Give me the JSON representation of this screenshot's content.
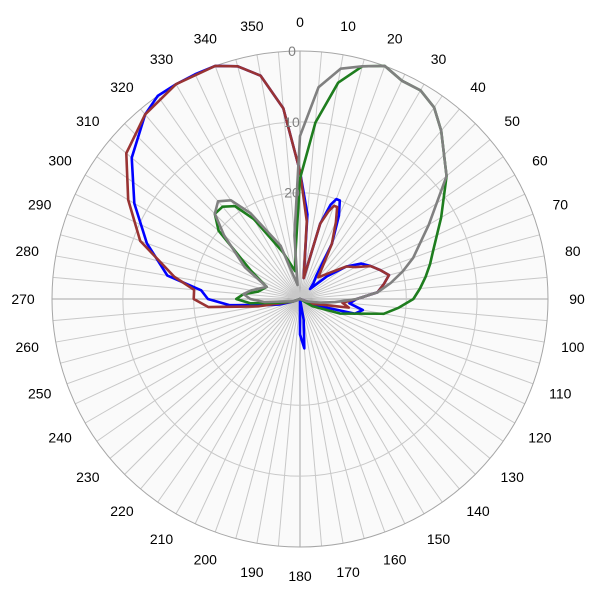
{
  "chart_data": {
    "type": "polar",
    "title": "",
    "angle_unit": "degrees",
    "angle_zero": "top",
    "angle_direction": "clockwise",
    "angle_ticks": [
      {
        "value": 0,
        "label": "0"
      },
      {
        "value": 10,
        "label": "10"
      },
      {
        "value": 20,
        "label": "20"
      },
      {
        "value": 30,
        "label": "30"
      },
      {
        "value": 40,
        "label": "40"
      },
      {
        "value": 50,
        "label": "50"
      },
      {
        "value": 60,
        "label": "60"
      },
      {
        "value": 70,
        "label": "70"
      },
      {
        "value": 80,
        "label": "80"
      },
      {
        "value": 90,
        "label": "90"
      },
      {
        "value": 100,
        "label": "100"
      },
      {
        "value": 110,
        "label": "110"
      },
      {
        "value": 120,
        "label": "120"
      },
      {
        "value": 130,
        "label": "130"
      },
      {
        "value": 140,
        "label": "140"
      },
      {
        "value": 150,
        "label": "150"
      },
      {
        "value": 160,
        "label": "160"
      },
      {
        "value": 170,
        "label": "170"
      },
      {
        "value": 180,
        "label": "180"
      },
      {
        "value": 190,
        "label": "190"
      },
      {
        "value": 200,
        "label": "200"
      },
      {
        "value": 210,
        "label": "210"
      },
      {
        "value": 220,
        "label": "220"
      },
      {
        "value": 230,
        "label": "230"
      },
      {
        "value": 240,
        "label": "240"
      },
      {
        "value": 250,
        "label": "250"
      },
      {
        "value": 260,
        "label": "260"
      },
      {
        "value": 270,
        "label": "270"
      },
      {
        "value": 280,
        "label": "280"
      },
      {
        "value": 290,
        "label": "290"
      },
      {
        "value": 300,
        "label": "300"
      },
      {
        "value": 310,
        "label": "310"
      },
      {
        "value": 320,
        "label": "320"
      },
      {
        "value": 330,
        "label": "330"
      },
      {
        "value": 340,
        "label": "340"
      },
      {
        "value": 350,
        "label": "350"
      }
    ],
    "radial_ticks": [
      {
        "value": 0,
        "label": "0"
      },
      {
        "value": -10,
        "label": "10"
      },
      {
        "value": -20,
        "label": "20"
      }
    ],
    "radial_range": [
      -35,
      0
    ],
    "spoke_step": 5,
    "grid": true,
    "legend": "none",
    "colors": {
      "grid": "#c8c8c8",
      "outer_circle": "#a6a6a6",
      "plot_background": "#fafafa",
      "radial_label": "#7f7f7f"
    },
    "series": [
      {
        "color": "#0000ff",
        "points": [
          [
            0,
            -17
          ],
          [
            5,
            -23
          ],
          [
            10,
            -32
          ],
          [
            15,
            -24
          ],
          [
            18,
            -21
          ],
          [
            20,
            -20
          ],
          [
            22,
            -20
          ],
          [
            25,
            -22
          ],
          [
            30,
            -26
          ],
          [
            35,
            -31
          ],
          [
            40,
            -32
          ],
          [
            45,
            -33
          ],
          [
            50,
            -30
          ],
          [
            55,
            -27
          ],
          [
            60,
            -25
          ],
          [
            65,
            -24
          ],
          [
            70,
            -23
          ],
          [
            75,
            -22
          ],
          [
            80,
            -23
          ],
          [
            85,
            -24
          ],
          [
            90,
            -27
          ],
          [
            95,
            -28
          ],
          [
            100,
            -26
          ],
          [
            105,
            -27
          ],
          [
            110,
            -32
          ],
          [
            120,
            -35
          ],
          [
            140,
            -35
          ],
          [
            160,
            -35
          ],
          [
            170,
            -32
          ],
          [
            175,
            -28
          ],
          [
            180,
            -30
          ],
          [
            190,
            -35
          ],
          [
            240,
            -35
          ],
          [
            250,
            -34
          ],
          [
            255,
            -32
          ],
          [
            260,
            -30
          ],
          [
            265,
            -25
          ],
          [
            270,
            -22
          ],
          [
            275,
            -21
          ],
          [
            280,
            -16
          ],
          [
            290,
            -12
          ],
          [
            300,
            -8
          ],
          [
            310,
            -4
          ],
          [
            320,
            -1
          ],
          [
            325,
            0
          ],
          [
            330,
            0
          ],
          [
            335,
            0
          ],
          [
            340,
            0
          ],
          [
            345,
            -1
          ],
          [
            350,
            -3
          ],
          [
            355,
            -8
          ],
          [
            360,
            -17
          ]
        ]
      },
      {
        "color": "#993333",
        "points": [
          [
            0,
            -17
          ],
          [
            5,
            -24
          ],
          [
            10,
            -32
          ],
          [
            15,
            -24
          ],
          [
            18,
            -22
          ],
          [
            20,
            -21
          ],
          [
            22,
            -21
          ],
          [
            25,
            -23
          ],
          [
            30,
            -26
          ],
          [
            40,
            -31
          ],
          [
            50,
            -29
          ],
          [
            55,
            -27
          ],
          [
            60,
            -26
          ],
          [
            65,
            -24
          ],
          [
            70,
            -23
          ],
          [
            75,
            -22
          ],
          [
            80,
            -23
          ],
          [
            85,
            -24
          ],
          [
            90,
            -27
          ],
          [
            95,
            -29
          ],
          [
            100,
            -28
          ],
          [
            110,
            -33
          ],
          [
            120,
            -35
          ],
          [
            180,
            -35
          ],
          [
            240,
            -35
          ],
          [
            250,
            -34
          ],
          [
            260,
            -29
          ],
          [
            265,
            -22
          ],
          [
            270,
            -20
          ],
          [
            275,
            -20
          ],
          [
            280,
            -17
          ],
          [
            290,
            -11
          ],
          [
            300,
            -7
          ],
          [
            310,
            -3
          ],
          [
            320,
            -1
          ],
          [
            330,
            0
          ],
          [
            340,
            0
          ],
          [
            345,
            -1
          ],
          [
            350,
            -3
          ],
          [
            355,
            -8
          ],
          [
            360,
            -17
          ]
        ]
      },
      {
        "color": "#1e7d1e",
        "points": [
          [
            0,
            -18
          ],
          [
            5,
            -10
          ],
          [
            10,
            -4
          ],
          [
            15,
            -1
          ],
          [
            20,
            0
          ],
          [
            25,
            -1
          ],
          [
            30,
            -1
          ],
          [
            35,
            -2
          ],
          [
            40,
            -4
          ],
          [
            50,
            -8
          ],
          [
            60,
            -12
          ],
          [
            70,
            -15
          ],
          [
            75,
            -16
          ],
          [
            80,
            -17
          ],
          [
            85,
            -18
          ],
          [
            90,
            -19
          ],
          [
            95,
            -21
          ],
          [
            100,
            -23
          ],
          [
            110,
            -29
          ],
          [
            120,
            -33
          ],
          [
            130,
            -35
          ],
          [
            180,
            -35
          ],
          [
            230,
            -35
          ],
          [
            250,
            -34
          ],
          [
            260,
            -32
          ],
          [
            265,
            -28
          ],
          [
            270,
            -26
          ],
          [
            275,
            -27
          ],
          [
            280,
            -29
          ],
          [
            290,
            -30
          ],
          [
            300,
            -27
          ],
          [
            310,
            -20
          ],
          [
            315,
            -18
          ],
          [
            320,
            -18
          ],
          [
            325,
            -19
          ],
          [
            330,
            -22
          ],
          [
            340,
            -28
          ],
          [
            350,
            -31
          ],
          [
            355,
            -28
          ],
          [
            360,
            -18
          ]
        ]
      },
      {
        "color": "#808080",
        "points": [
          [
            0,
            -12
          ],
          [
            5,
            -5
          ],
          [
            10,
            -2
          ],
          [
            15,
            -1
          ],
          [
            20,
            0
          ],
          [
            25,
            -1
          ],
          [
            30,
            -1
          ],
          [
            35,
            -2
          ],
          [
            40,
            -4
          ],
          [
            50,
            -8
          ],
          [
            60,
            -14
          ],
          [
            70,
            -18
          ],
          [
            75,
            -20
          ],
          [
            80,
            -22
          ],
          [
            85,
            -24
          ],
          [
            90,
            -27
          ],
          [
            95,
            -30
          ],
          [
            100,
            -32
          ],
          [
            110,
            -34
          ],
          [
            120,
            -35
          ],
          [
            180,
            -35
          ],
          [
            240,
            -35
          ],
          [
            250,
            -34
          ],
          [
            260,
            -33
          ],
          [
            265,
            -30
          ],
          [
            270,
            -28
          ],
          [
            275,
            -27
          ],
          [
            280,
            -28
          ],
          [
            290,
            -30
          ],
          [
            300,
            -26
          ],
          [
            310,
            -21
          ],
          [
            315,
            -18
          ],
          [
            320,
            -17
          ],
          [
            325,
            -18
          ],
          [
            330,
            -21
          ],
          [
            340,
            -27
          ],
          [
            350,
            -33
          ],
          [
            355,
            -26
          ],
          [
            360,
            -12
          ]
        ]
      }
    ]
  }
}
